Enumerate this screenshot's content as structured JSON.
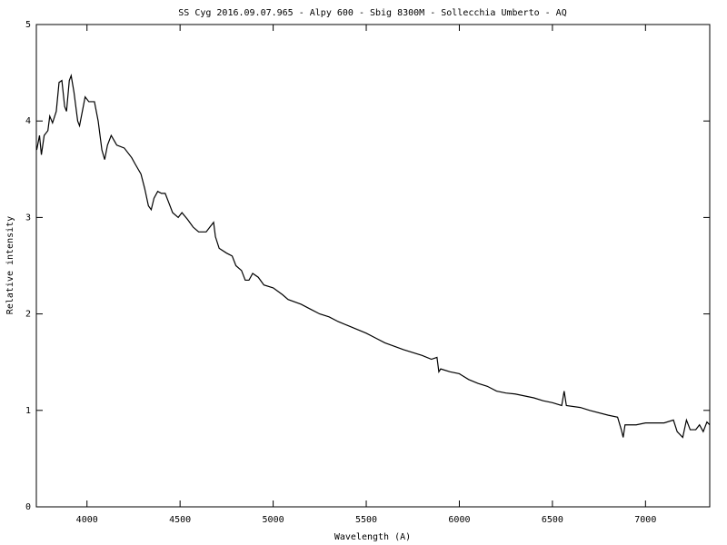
{
  "chart_data": {
    "type": "line",
    "title": "SS Cyg 2016.09.07.965 - Alpy 600 - Sbig 8300M  - Sollecchia Umberto - AQ",
    "x_label": "Wavelength (A)",
    "y_label": "Relative intensity",
    "xlim": [
      3728,
      7345
    ],
    "ylim": [
      0,
      5
    ],
    "xticks": [
      4000,
      4500,
      5000,
      5500,
      6000,
      6500,
      7000
    ],
    "yticks": [
      0,
      1,
      2,
      3,
      4,
      5
    ],
    "grid": false,
    "series": [
      {
        "color": "#000000",
        "x": [
          3730,
          3745,
          3755,
          3770,
          3790,
          3800,
          3815,
          3835,
          3850,
          3865,
          3880,
          3890,
          3905,
          3915,
          3930,
          3950,
          3960,
          3975,
          3990,
          4010,
          4040,
          4060,
          4080,
          4095,
          4110,
          4130,
          4160,
          4200,
          4240,
          4260,
          4290,
          4310,
          4330,
          4345,
          4360,
          4380,
          4400,
          4420,
          4440,
          4460,
          4490,
          4510,
          4540,
          4570,
          4600,
          4640,
          4660,
          4680,
          4690,
          4710,
          4750,
          4780,
          4800,
          4830,
          4850,
          4870,
          4890,
          4920,
          4950,
          5000,
          5050,
          5080,
          5150,
          5200,
          5250,
          5300,
          5350,
          5400,
          5450,
          5500,
          5550,
          5600,
          5700,
          5800,
          5850,
          5880,
          5890,
          5900,
          5950,
          6000,
          6050,
          6100,
          6150,
          6200,
          6250,
          6300,
          6400,
          6450,
          6500,
          6550,
          6563,
          6575,
          6650,
          6700,
          6800,
          6850,
          6870,
          6880,
          6890,
          6950,
          7000,
          7100,
          7150,
          7170,
          7200,
          7220,
          7240,
          7270,
          7290,
          7310,
          7330,
          7345
        ],
        "values": [
          3.7,
          3.85,
          3.65,
          3.85,
          3.9,
          4.05,
          3.98,
          4.1,
          4.4,
          4.42,
          4.15,
          4.1,
          4.42,
          4.47,
          4.3,
          4.0,
          3.95,
          4.1,
          4.25,
          4.2,
          4.2,
          4.0,
          3.7,
          3.6,
          3.75,
          3.85,
          3.75,
          3.72,
          3.62,
          3.55,
          3.45,
          3.3,
          3.12,
          3.08,
          3.2,
          3.27,
          3.25,
          3.25,
          3.15,
          3.05,
          3.0,
          3.05,
          2.98,
          2.9,
          2.85,
          2.85,
          2.9,
          2.95,
          2.8,
          2.68,
          2.63,
          2.6,
          2.5,
          2.45,
          2.35,
          2.35,
          2.42,
          2.38,
          2.3,
          2.27,
          2.2,
          2.15,
          2.1,
          2.05,
          2.0,
          1.97,
          1.92,
          1.88,
          1.84,
          1.8,
          1.75,
          1.7,
          1.63,
          1.57,
          1.53,
          1.55,
          1.4,
          1.43,
          1.4,
          1.38,
          1.32,
          1.28,
          1.25,
          1.2,
          1.18,
          1.17,
          1.13,
          1.1,
          1.08,
          1.05,
          1.2,
          1.05,
          1.03,
          1.0,
          0.95,
          0.93,
          0.8,
          0.72,
          0.85,
          0.85,
          0.87,
          0.87,
          0.9,
          0.78,
          0.72,
          0.9,
          0.8,
          0.8,
          0.85,
          0.78,
          0.88,
          0.85
        ]
      }
    ]
  }
}
